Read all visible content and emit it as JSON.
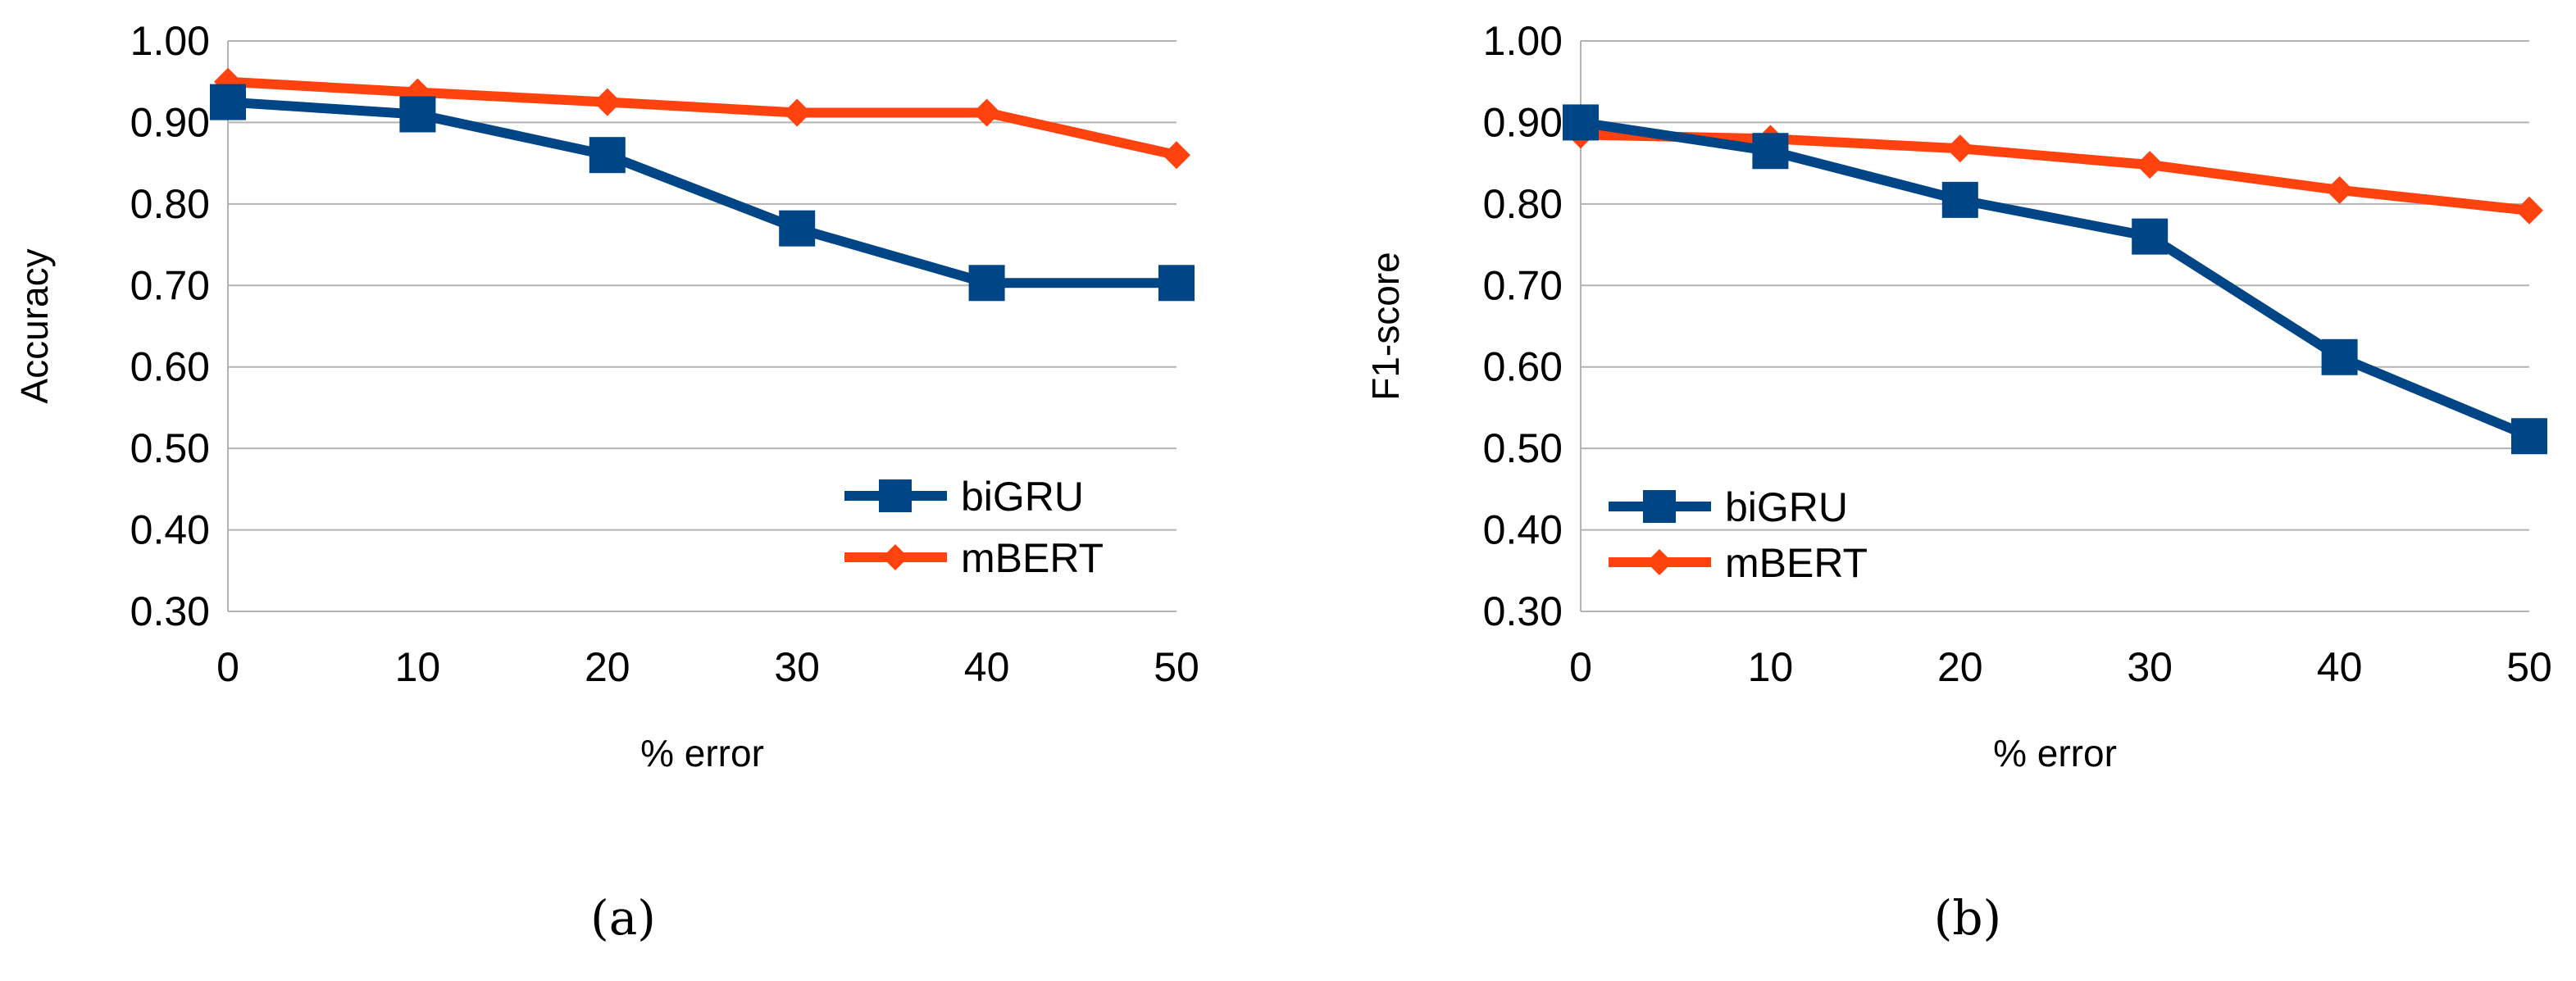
{
  "chart_data": [
    {
      "type": "line",
      "panel_label": "(a)",
      "x": [
        0,
        10,
        20,
        30,
        40,
        50
      ],
      "xlabel": "% error",
      "ylabel": "Accuracy",
      "ylim": [
        0.3,
        1.0
      ],
      "yticks": [
        "0.30",
        "0.40",
        "0.50",
        "0.60",
        "0.70",
        "0.80",
        "0.90",
        "1.00"
      ],
      "grid": true,
      "legend_position": "bottom-right",
      "series": [
        {
          "name": "biGRU",
          "color": "#004586",
          "marker": "square",
          "values": [
            0.925,
            0.91,
            0.86,
            0.77,
            0.703,
            0.703
          ]
        },
        {
          "name": "mBERT",
          "color": "#ff420e",
          "marker": "diamond",
          "values": [
            0.95,
            0.937,
            0.925,
            0.912,
            0.912,
            0.86
          ]
        }
      ]
    },
    {
      "type": "line",
      "panel_label": "(b)",
      "x": [
        0,
        10,
        20,
        30,
        40,
        50
      ],
      "xlabel": "% error",
      "ylabel": "F1-score",
      "ylim": [
        0.3,
        1.0
      ],
      "yticks": [
        "0.30",
        "0.40",
        "0.50",
        "0.60",
        "0.70",
        "0.80",
        "0.90",
        "1.00"
      ],
      "grid": true,
      "legend_position": "center-left",
      "series": [
        {
          "name": "biGRU",
          "color": "#004586",
          "marker": "square",
          "values": [
            0.9,
            0.865,
            0.805,
            0.76,
            0.612,
            0.515
          ]
        },
        {
          "name": "mBERT",
          "color": "#ff420e",
          "marker": "diamond",
          "values": [
            0.885,
            0.88,
            0.868,
            0.848,
            0.817,
            0.792
          ]
        }
      ]
    }
  ]
}
